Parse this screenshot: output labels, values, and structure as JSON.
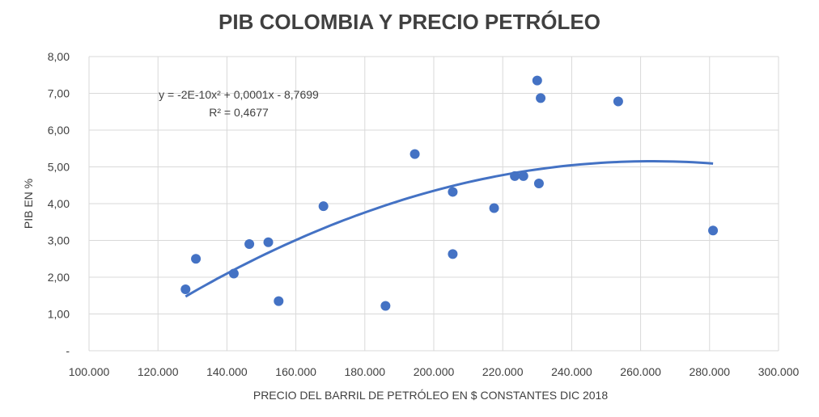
{
  "chart_data": {
    "type": "scatter",
    "title": "PIB COLOMBIA Y PRECIO PETRÓLEO",
    "xlabel": "PRECIO DEL BARRIL DE PETRÓLEO EN $ CONSTANTES DIC 2018",
    "ylabel": "PIB EN %",
    "xlim": [
      100000,
      300000
    ],
    "ylim": [
      0,
      8
    ],
    "x_ticks": [
      "100.000",
      "120.000",
      "140.000",
      "160.000",
      "180.000",
      "200.000",
      "220.000",
      "240.000",
      "260.000",
      "280.000",
      "300.000"
    ],
    "y_ticks": [
      "-",
      "1,00",
      "2,00",
      "3,00",
      "4,00",
      "5,00",
      "6,00",
      "7,00",
      "8,00"
    ],
    "grid": true,
    "point_color": "#4472c4",
    "trend_color": "#4472c4",
    "points": [
      {
        "x": 128000,
        "y": 1.67
      },
      {
        "x": 131000,
        "y": 2.5
      },
      {
        "x": 142000,
        "y": 2.1
      },
      {
        "x": 146500,
        "y": 2.9
      },
      {
        "x": 152000,
        "y": 2.95
      },
      {
        "x": 155000,
        "y": 1.35
      },
      {
        "x": 168000,
        "y": 3.93
      },
      {
        "x": 186000,
        "y": 1.22
      },
      {
        "x": 194500,
        "y": 5.35
      },
      {
        "x": 205500,
        "y": 4.32
      },
      {
        "x": 205500,
        "y": 2.63
      },
      {
        "x": 217500,
        "y": 3.88
      },
      {
        "x": 223500,
        "y": 4.75
      },
      {
        "x": 226000,
        "y": 4.75
      },
      {
        "x": 230000,
        "y": 7.35
      },
      {
        "x": 230500,
        "y": 4.55
      },
      {
        "x": 231000,
        "y": 6.87
      },
      {
        "x": 253500,
        "y": 6.78
      },
      {
        "x": 281000,
        "y": 3.27
      }
    ],
    "trendline": {
      "type": "polynomial",
      "x_range": [
        128000,
        281000
      ],
      "equation_label": "y = -2E-10x² + 0,0001x - 8,7699",
      "r2_label": "R² = 0,4677"
    }
  }
}
